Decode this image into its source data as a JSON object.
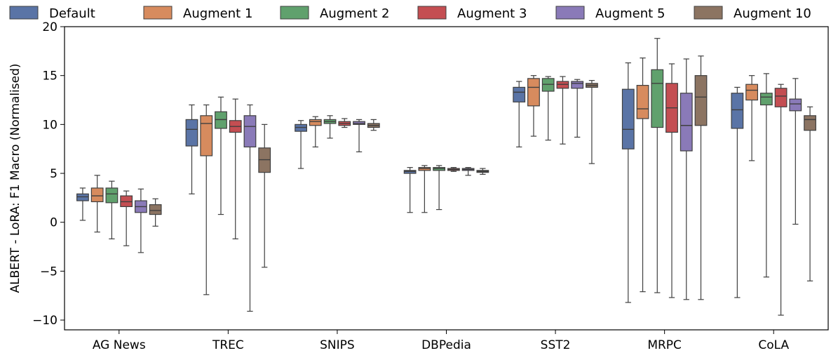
{
  "chart_data": {
    "type": "box",
    "ylabel": "ALBERT - LoRA: F1 Macro (Normalised)",
    "ylim": [
      -11,
      20
    ],
    "yticks": [
      -10,
      -5,
      0,
      5,
      10,
      15,
      20
    ],
    "grid": false,
    "legend_position": "top",
    "categories": [
      "AG News",
      "TREC",
      "SNIPS",
      "DBPedia",
      "SST2",
      "MRPC",
      "CoLA"
    ],
    "series": [
      {
        "name": "Default",
        "color": "#5a74a6",
        "boxes": [
          {
            "min": 0.2,
            "q1": 2.2,
            "median": 2.6,
            "q3": 2.9,
            "max": 3.5
          },
          {
            "min": 2.9,
            "q1": 7.8,
            "median": 9.5,
            "q3": 10.5,
            "max": 12.0
          },
          {
            "min": 5.5,
            "q1": 9.3,
            "median": 9.7,
            "q3": 10.0,
            "max": 10.4
          },
          {
            "min": 1.0,
            "q1": 5.0,
            "median": 5.2,
            "q3": 5.3,
            "max": 5.6
          },
          {
            "min": 7.7,
            "q1": 12.3,
            "median": 13.3,
            "q3": 13.8,
            "max": 14.4
          },
          {
            "min": -8.2,
            "q1": 7.5,
            "median": 9.5,
            "q3": 13.6,
            "max": 16.3
          },
          {
            "min": -7.7,
            "q1": 9.6,
            "median": 11.5,
            "q3": 13.2,
            "max": 13.8
          }
        ]
      },
      {
        "name": "Augment 1",
        "color": "#d78b5e",
        "boxes": [
          {
            "min": -1.0,
            "q1": 2.1,
            "median": 2.7,
            "q3": 3.5,
            "max": 4.8
          },
          {
            "min": -7.4,
            "q1": 6.8,
            "median": 10.1,
            "q3": 10.9,
            "max": 12.0
          },
          {
            "min": 7.7,
            "q1": 9.9,
            "median": 10.3,
            "q3": 10.5,
            "max": 10.8
          },
          {
            "min": 1.0,
            "q1": 5.3,
            "median": 5.5,
            "q3": 5.6,
            "max": 5.8
          },
          {
            "min": 8.8,
            "q1": 11.9,
            "median": 13.8,
            "q3": 14.7,
            "max": 15.0
          },
          {
            "min": -7.1,
            "q1": 10.6,
            "median": 11.6,
            "q3": 14.0,
            "max": 16.8
          },
          {
            "min": 6.3,
            "q1": 12.5,
            "median": 13.5,
            "q3": 14.1,
            "max": 15.0
          }
        ]
      },
      {
        "name": "Augment 2",
        "color": "#60a16d",
        "boxes": [
          {
            "min": -1.7,
            "q1": 2.0,
            "median": 2.9,
            "q3": 3.5,
            "max": 4.2
          },
          {
            "min": 0.8,
            "q1": 9.6,
            "median": 10.5,
            "q3": 11.3,
            "max": 12.8
          },
          {
            "min": 8.6,
            "q1": 10.1,
            "median": 10.3,
            "q3": 10.5,
            "max": 10.9
          },
          {
            "min": 1.3,
            "q1": 5.3,
            "median": 5.5,
            "q3": 5.6,
            "max": 5.8
          },
          {
            "min": 8.4,
            "q1": 13.4,
            "median": 14.1,
            "q3": 14.7,
            "max": 14.9
          },
          {
            "min": -7.2,
            "q1": 9.7,
            "median": 14.2,
            "q3": 15.6,
            "max": 18.8
          },
          {
            "min": -5.6,
            "q1": 12.0,
            "median": 12.8,
            "q3": 13.2,
            "max": 15.2
          }
        ]
      },
      {
        "name": "Augment 3",
        "color": "#c44e52",
        "boxes": [
          {
            "min": -2.4,
            "q1": 1.6,
            "median": 2.1,
            "q3": 2.7,
            "max": 3.2
          },
          {
            "min": -1.7,
            "q1": 9.2,
            "median": 9.8,
            "q3": 10.4,
            "max": 12.6
          },
          {
            "min": 9.7,
            "q1": 9.9,
            "median": 10.1,
            "q3": 10.3,
            "max": 10.6
          },
          {
            "min": 5.2,
            "q1": 5.3,
            "median": 5.4,
            "q3": 5.5,
            "max": 5.6
          },
          {
            "min": 8.0,
            "q1": 13.7,
            "median": 14.1,
            "q3": 14.4,
            "max": 14.9
          },
          {
            "min": -7.7,
            "q1": 9.2,
            "median": 11.7,
            "q3": 14.2,
            "max": 16.2
          },
          {
            "min": -9.5,
            "q1": 11.8,
            "median": 12.9,
            "q3": 13.7,
            "max": 14.1
          }
        ]
      },
      {
        "name": "Augment 5",
        "color": "#8a7ab8",
        "boxes": [
          {
            "min": -3.1,
            "q1": 1.0,
            "median": 1.6,
            "q3": 2.2,
            "max": 3.4
          },
          {
            "min": -9.1,
            "q1": 7.7,
            "median": 9.8,
            "q3": 10.9,
            "max": 12.0
          },
          {
            "min": 7.2,
            "q1": 10.0,
            "median": 10.1,
            "q3": 10.3,
            "max": 10.5
          },
          {
            "min": 4.8,
            "q1": 5.3,
            "median": 5.4,
            "q3": 5.5,
            "max": 5.6
          },
          {
            "min": 8.7,
            "q1": 13.7,
            "median": 14.2,
            "q3": 14.4,
            "max": 14.6
          },
          {
            "min": -7.9,
            "q1": 7.3,
            "median": 9.9,
            "q3": 13.2,
            "max": 16.7
          },
          {
            "min": -0.2,
            "q1": 11.4,
            "median": 12.1,
            "q3": 12.6,
            "max": 14.7
          }
        ]
      },
      {
        "name": "Augment 10",
        "color": "#8c7462",
        "boxes": [
          {
            "min": -0.4,
            "q1": 0.8,
            "median": 1.2,
            "q3": 1.8,
            "max": 2.4
          },
          {
            "min": -4.6,
            "q1": 5.1,
            "median": 6.4,
            "q3": 7.6,
            "max": 10.0
          },
          {
            "min": 9.4,
            "q1": 9.7,
            "median": 9.9,
            "q3": 10.1,
            "max": 10.5
          },
          {
            "min": 4.9,
            "q1": 5.1,
            "median": 5.2,
            "q3": 5.3,
            "max": 5.5
          },
          {
            "min": 6.0,
            "q1": 13.8,
            "median": 14.0,
            "q3": 14.2,
            "max": 14.5
          },
          {
            "min": -7.9,
            "q1": 9.9,
            "median": 12.8,
            "q3": 15.0,
            "max": 17.0
          },
          {
            "min": -6.0,
            "q1": 9.4,
            "median": 10.5,
            "q3": 10.9,
            "max": 11.8
          }
        ]
      }
    ]
  }
}
